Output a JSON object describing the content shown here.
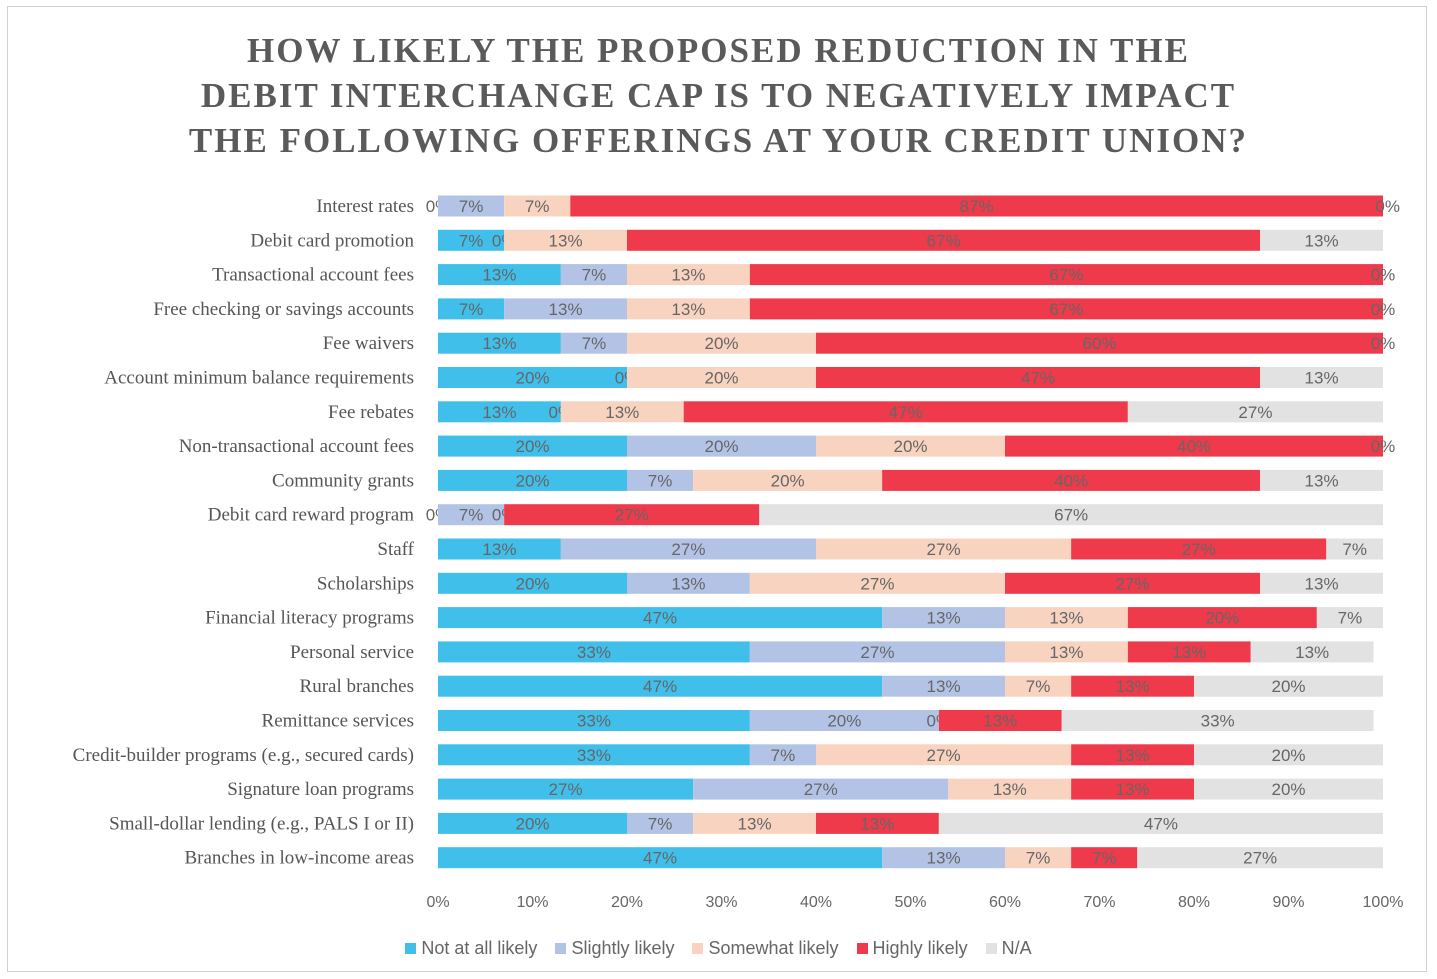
{
  "title_lines": [
    "HOW LIKELY THE PROPOSED REDUCTION IN THE",
    "DEBIT INTERCHANGE CAP IS TO NEGATIVELY IMPACT",
    "THE FOLLOWING OFFERINGS AT YOUR CREDIT UNION?"
  ],
  "chart_data": {
    "type": "bar",
    "orientation": "horizontal",
    "stacked": "percent",
    "title": "HOW LIKELY THE PROPOSED REDUCTION IN THE DEBIT INTERCHANGE CAP IS TO NEGATIVELY IMPACT THE FOLLOWING OFFERINGS AT YOUR CREDIT UNION?",
    "xlim": [
      0,
      100
    ],
    "xticks": [
      "0%",
      "10%",
      "20%",
      "30%",
      "40%",
      "50%",
      "60%",
      "70%",
      "80%",
      "90%",
      "100%"
    ],
    "grid": false,
    "legend_position": "bottom",
    "categories": [
      "Interest rates",
      "Debit card promotion",
      "Transactional account fees",
      "Free checking or savings accounts",
      "Fee waivers",
      "Account minimum balance requirements",
      "Fee rebates",
      "Non-transactional account fees",
      "Community grants",
      "Debit card reward program",
      "Staff",
      "Scholarships",
      "Financial literacy programs",
      "Personal service",
      "Rural branches",
      "Remittance services",
      "Credit-builder programs (e.g., secured cards)",
      "Signature loan programs",
      "Small-dollar lending (e.g., PALS I or II)",
      "Branches in low-income areas"
    ],
    "series": [
      {
        "name": "Not at all likely",
        "color": "#3fbfea",
        "values": [
          0,
          7,
          13,
          7,
          13,
          20,
          13,
          20,
          20,
          0,
          13,
          20,
          47,
          33,
          47,
          33,
          33,
          27,
          20,
          47
        ]
      },
      {
        "name": "Slightly likely",
        "color": "#b3c3e6",
        "values": [
          7,
          0,
          7,
          13,
          7,
          0,
          0,
          20,
          7,
          7,
          27,
          13,
          13,
          27,
          13,
          20,
          7,
          27,
          7,
          13
        ]
      },
      {
        "name": "Somewhat likely",
        "color": "#f8d3c0",
        "values": [
          7,
          13,
          13,
          13,
          20,
          20,
          13,
          20,
          20,
          0,
          27,
          27,
          13,
          13,
          7,
          0,
          27,
          13,
          13,
          7
        ]
      },
      {
        "name": "Highly likely",
        "color": "#ee3a4a",
        "values": [
          87,
          67,
          67,
          67,
          60,
          47,
          47,
          40,
          40,
          27,
          27,
          27,
          20,
          13,
          13,
          13,
          13,
          13,
          13,
          7
        ]
      },
      {
        "name": "N/A",
        "color": "#e2e2e2",
        "values": [
          0,
          13,
          0,
          0,
          0,
          13,
          27,
          0,
          13,
          67,
          7,
          13,
          7,
          13,
          20,
          33,
          20,
          20,
          47,
          27
        ]
      }
    ]
  }
}
